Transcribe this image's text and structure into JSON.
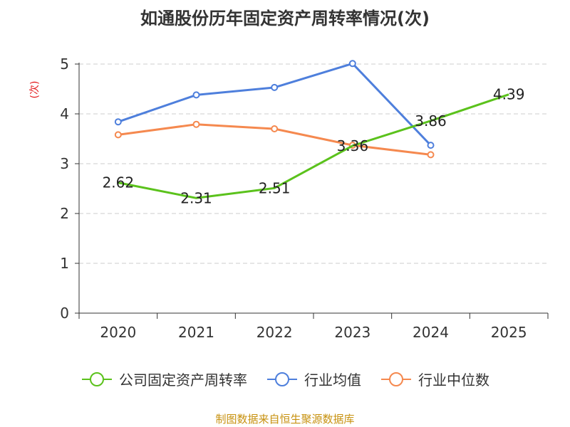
{
  "chart_data": {
    "type": "line",
    "title": "如通股份历年固定资产周转率情况(次)",
    "ylabel": "(次)",
    "xlabel": "",
    "categories": [
      "2020",
      "2021",
      "2022",
      "2023",
      "2024",
      "2025"
    ],
    "ylim": [
      0,
      5
    ],
    "yticks": [
      0,
      1,
      2,
      3,
      4,
      5
    ],
    "grid": true,
    "legend_position": "bottom",
    "series": [
      {
        "name": "公司固定资产周转率",
        "color": "#5bc21c",
        "values": [
          2.62,
          2.31,
          2.51,
          3.36,
          3.86,
          4.39
        ],
        "labels": [
          "2.62",
          "2.31",
          "2.51",
          "3.36",
          "3.86",
          "4.39"
        ],
        "show_markers": false
      },
      {
        "name": "行业均值",
        "color": "#4e7fdc",
        "values": [
          3.84,
          4.38,
          4.53,
          5.01,
          3.37,
          null
        ],
        "show_markers": true
      },
      {
        "name": "行业中位数",
        "color": "#f5894f",
        "values": [
          3.58,
          3.79,
          3.7,
          3.37,
          3.18,
          null
        ],
        "show_markers": true
      }
    ]
  },
  "source": "制图数据来自恒生聚源数据库"
}
